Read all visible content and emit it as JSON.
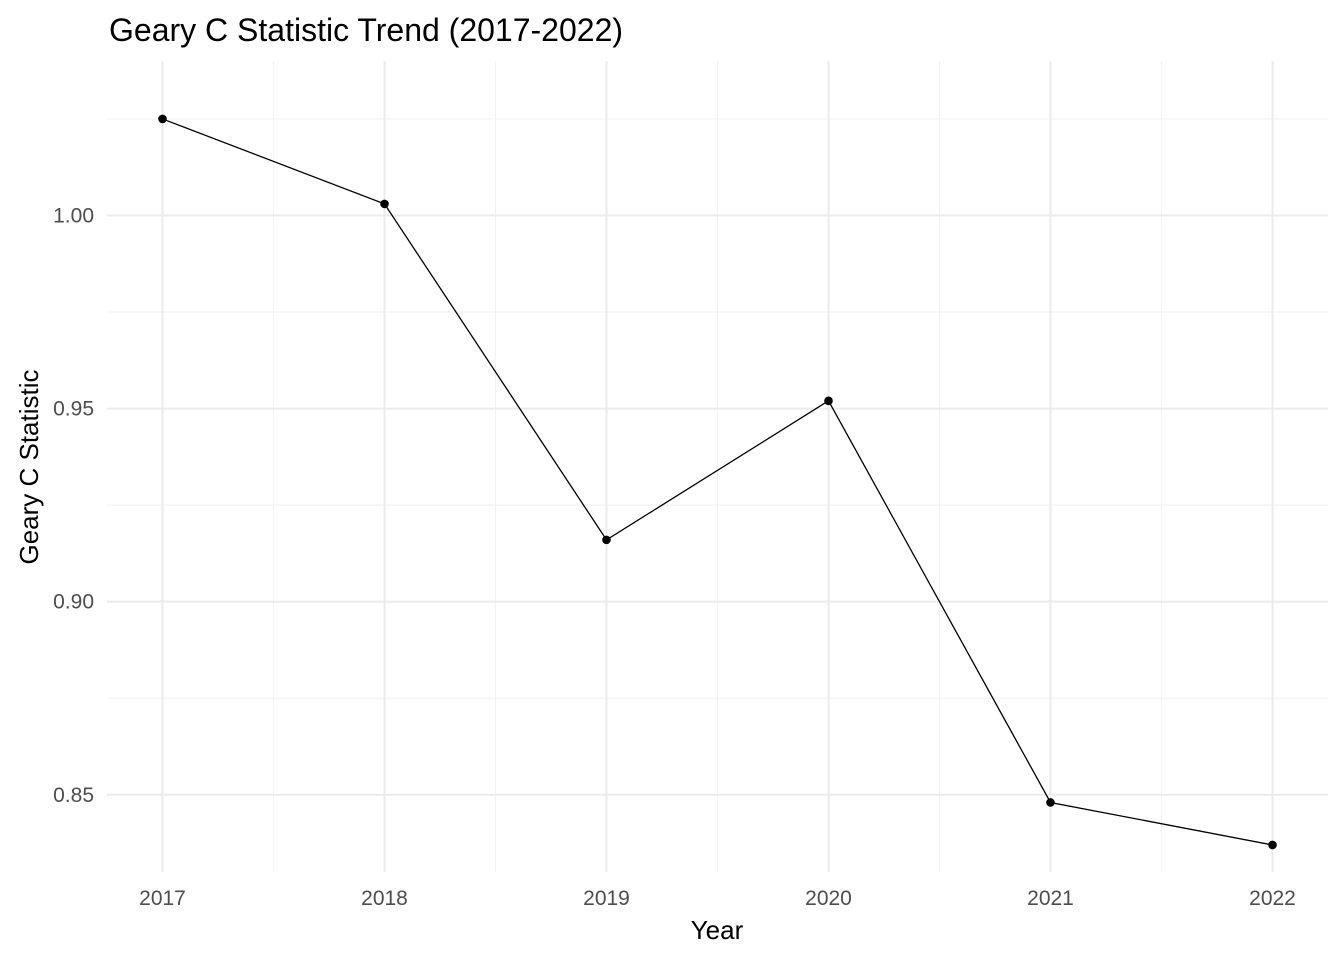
{
  "chart_data": {
    "type": "line",
    "title": "Geary C Statistic Trend (2017-2022)",
    "xlabel": "Year",
    "ylabel": "Geary C Statistic",
    "x": [
      2017,
      2018,
      2019,
      2020,
      2021,
      2022
    ],
    "series": [
      {
        "values": [
          1.025,
          1.003,
          0.916,
          0.952,
          0.848,
          0.837
        ]
      }
    ],
    "x_ticks": [
      "2017",
      "2018",
      "2019",
      "2020",
      "2021",
      "2022"
    ],
    "y_ticks": [
      "0.85",
      "0.90",
      "0.95",
      "1.00"
    ],
    "y_tick_values": [
      0.85,
      0.9,
      0.95,
      1.0
    ],
    "xlim": [
      2016.75,
      2022.25
    ],
    "ylim": [
      0.83,
      1.04
    ],
    "grid": true,
    "legend": "none",
    "colors": {
      "line": "#000000",
      "point": "#000000",
      "grid": "#ebebeb",
      "tick_text": "#4d4d4d"
    }
  }
}
